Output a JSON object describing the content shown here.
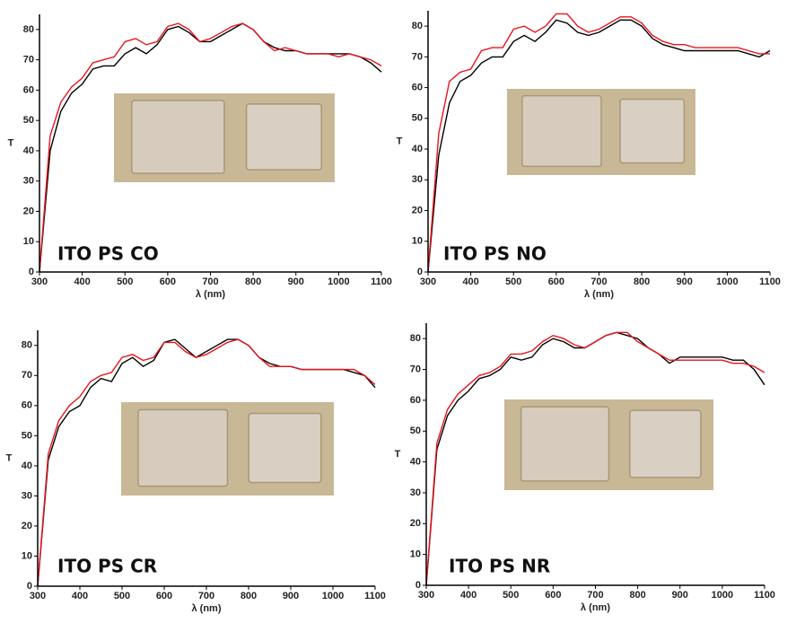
{
  "chart_data": [
    {
      "type": "line",
      "annotation": "ITO PS CO",
      "xlabel": "λ (nm)",
      "ylabel": "T",
      "x": [
        300,
        325,
        350,
        375,
        400,
        425,
        450,
        475,
        500,
        525,
        550,
        575,
        600,
        625,
        650,
        675,
        700,
        725,
        750,
        775,
        800,
        825,
        850,
        875,
        900,
        925,
        950,
        975,
        1000,
        1025,
        1050,
        1075,
        1100
      ],
      "series": [
        {
          "color": "#000000",
          "values": [
            0,
            40,
            53,
            59,
            62,
            67,
            68,
            68,
            72,
            74,
            72,
            75,
            80,
            81,
            79,
            76,
            76,
            78,
            80,
            82,
            80,
            76,
            74,
            73,
            73,
            72,
            72,
            72,
            72,
            72,
            71,
            69,
            66
          ]
        },
        {
          "color": "#e8141c",
          "values": [
            0,
            45,
            56,
            61,
            64,
            69,
            70,
            71,
            76,
            77,
            75,
            76,
            81,
            82,
            80,
            76,
            77,
            79,
            81,
            82,
            80,
            76,
            73,
            74,
            73,
            72,
            72,
            72,
            71,
            72,
            71,
            70,
            68
          ]
        }
      ],
      "xlim": [
        300,
        1100
      ],
      "ylim": [
        0,
        85
      ],
      "xticks": [
        300,
        400,
        500,
        600,
        700,
        800,
        900,
        1000,
        1100
      ],
      "yticks": [
        0,
        10,
        20,
        30,
        40,
        50,
        60,
        70,
        80
      ]
    },
    {
      "type": "line",
      "annotation": "ITO PS NO",
      "xlabel": "λ (nm)",
      "ylabel": "T",
      "x": [
        300,
        325,
        350,
        375,
        400,
        425,
        450,
        475,
        500,
        525,
        550,
        575,
        600,
        625,
        650,
        675,
        700,
        725,
        750,
        775,
        800,
        825,
        850,
        875,
        900,
        925,
        950,
        975,
        1000,
        1025,
        1050,
        1075,
        1100
      ],
      "series": [
        {
          "color": "#000000",
          "values": [
            0,
            38,
            55,
            62,
            64,
            68,
            70,
            70,
            75,
            77,
            75,
            78,
            82,
            81,
            78,
            77,
            78,
            80,
            82,
            82,
            80,
            76,
            74,
            73,
            72,
            72,
            72,
            72,
            72,
            72,
            71,
            70,
            72
          ]
        },
        {
          "color": "#e8141c",
          "values": [
            0,
            45,
            62,
            65,
            66,
            72,
            73,
            73,
            79,
            80,
            78,
            80,
            84,
            84,
            80,
            78,
            79,
            81,
            83,
            83,
            81,
            77,
            75,
            74,
            74,
            73,
            73,
            73,
            73,
            73,
            72,
            71,
            71
          ]
        }
      ],
      "xlim": [
        300,
        1100
      ],
      "ylim": [
        0,
        85
      ],
      "xticks": [
        300,
        400,
        500,
        600,
        700,
        800,
        900,
        1000,
        1100
      ],
      "yticks": [
        0,
        10,
        20,
        30,
        40,
        50,
        60,
        70,
        80
      ]
    },
    {
      "type": "line",
      "annotation": "ITO PS CR",
      "xlabel": "λ (nm)",
      "ylabel": "T",
      "x": [
        300,
        325,
        350,
        375,
        400,
        425,
        450,
        475,
        500,
        525,
        550,
        575,
        600,
        625,
        650,
        675,
        700,
        725,
        750,
        775,
        800,
        825,
        850,
        875,
        900,
        925,
        950,
        975,
        1000,
        1025,
        1050,
        1075,
        1100
      ],
      "series": [
        {
          "color": "#000000",
          "values": [
            0,
            42,
            53,
            58,
            60,
            66,
            69,
            68,
            74,
            76,
            73,
            75,
            81,
            82,
            79,
            76,
            78,
            80,
            82,
            82,
            80,
            76,
            74,
            73,
            73,
            72,
            72,
            72,
            72,
            72,
            71,
            70,
            66
          ]
        },
        {
          "color": "#e8141c",
          "values": [
            0,
            44,
            55,
            60,
            63,
            68,
            70,
            71,
            76,
            77,
            75,
            76,
            81,
            81,
            78,
            76,
            77,
            79,
            81,
            82,
            80,
            76,
            73,
            73,
            73,
            72,
            72,
            72,
            72,
            72,
            72,
            70,
            67
          ]
        }
      ],
      "xlim": [
        300,
        1100
      ],
      "ylim": [
        0,
        85
      ],
      "xticks": [
        300,
        400,
        500,
        600,
        700,
        800,
        900,
        1000,
        1100
      ],
      "yticks": [
        0,
        10,
        20,
        30,
        40,
        50,
        60,
        70,
        80
      ]
    },
    {
      "type": "line",
      "annotation": "ITO PS NR",
      "xlabel": "λ (nm)",
      "ylabel": "T",
      "x": [
        300,
        325,
        350,
        375,
        400,
        425,
        450,
        475,
        500,
        525,
        550,
        575,
        600,
        625,
        650,
        675,
        700,
        725,
        750,
        775,
        800,
        825,
        850,
        875,
        900,
        925,
        950,
        975,
        1000,
        1025,
        1050,
        1075,
        1100
      ],
      "series": [
        {
          "color": "#000000",
          "values": [
            0,
            44,
            55,
            60,
            63,
            67,
            68,
            70,
            74,
            73,
            74,
            78,
            80,
            79,
            77,
            77,
            79,
            81,
            82,
            81,
            80,
            77,
            75,
            72,
            74,
            74,
            74,
            74,
            74,
            73,
            73,
            70,
            65
          ]
        },
        {
          "color": "#e8141c",
          "values": [
            0,
            46,
            57,
            62,
            65,
            68,
            69,
            71,
            75,
            75,
            76,
            79,
            81,
            80,
            78,
            77,
            79,
            81,
            82,
            82,
            79,
            77,
            75,
            73,
            73,
            73,
            73,
            73,
            73,
            72,
            72,
            71,
            69
          ]
        }
      ],
      "xlim": [
        300,
        1100
      ],
      "ylim": [
        0,
        85
      ],
      "xticks": [
        300,
        400,
        500,
        600,
        700,
        800,
        900,
        1000,
        1100
      ],
      "yticks": [
        0,
        10,
        20,
        30,
        40,
        50,
        60,
        70,
        80
      ]
    }
  ]
}
